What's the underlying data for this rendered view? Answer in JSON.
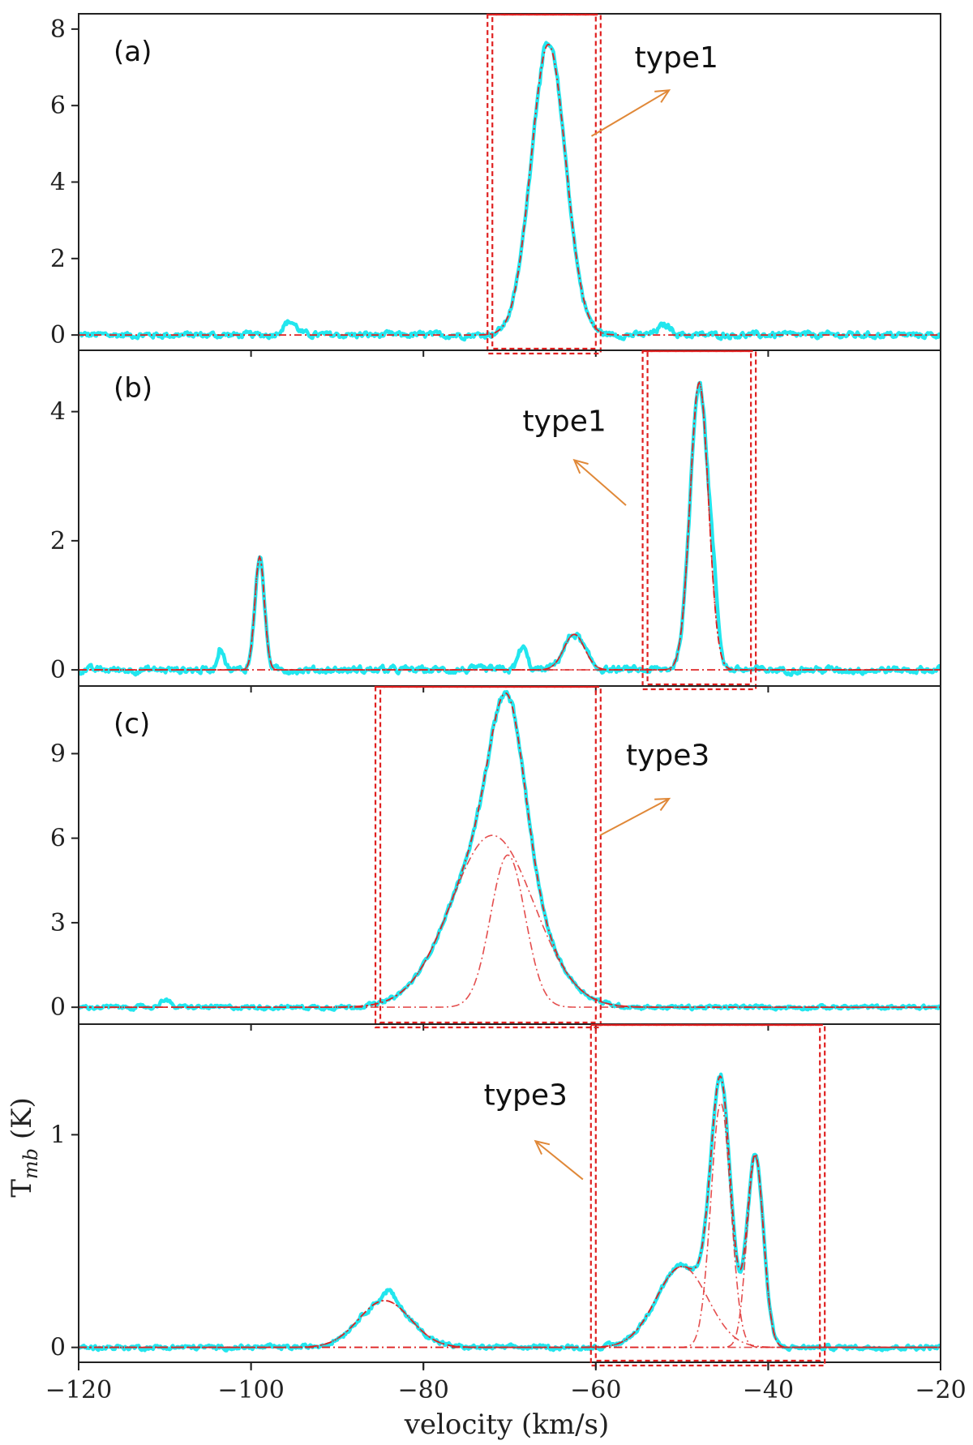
{
  "chart_data": [
    {
      "type": "line",
      "panel_label": "(a)",
      "xlim": [
        -120,
        -20
      ],
      "ylim": [
        -0.4,
        8.4
      ],
      "yticks": [
        0,
        2,
        4,
        6,
        8
      ],
      "grid": false,
      "line_color": "#22e6ee",
      "fit_color": "#dd2222",
      "components": [
        {
          "amp": 7.6,
          "center": -65.5,
          "sigma": 2.0
        }
      ],
      "noise": 0.09,
      "bumps": [
        {
          "amp": 0.35,
          "center": -95.5,
          "sigma": 0.8
        },
        {
          "amp": 0.25,
          "center": -52.0,
          "sigma": 0.8
        }
      ],
      "box": {
        "x0": -72,
        "x1": -60
      },
      "annotation": {
        "text": "type1",
        "arrow_from": [
          -60.5,
          5.2
        ],
        "arrow_to": [
          -51.5,
          6.4
        ],
        "text_at": [
          -55.5,
          7.0
        ]
      }
    },
    {
      "type": "line",
      "panel_label": "(b)",
      "xlim": [
        -120,
        -20
      ],
      "ylim": [
        -0.25,
        4.95
      ],
      "yticks": [
        0,
        2,
        4
      ],
      "grid": false,
      "line_color": "#22e6ee",
      "fit_color": "#dd2222",
      "components": [
        {
          "amp": 1.75,
          "center": -99.0,
          "sigma": 0.55
        },
        {
          "amp": 0.55,
          "center": -62.5,
          "sigma": 1.2
        },
        {
          "amp": 4.45,
          "center": -48.0,
          "sigma": 1.05
        }
      ],
      "noise": 0.06,
      "bumps": [
        {
          "amp": 0.35,
          "center": -103.5,
          "sigma": 0.4
        },
        {
          "amp": 0.35,
          "center": -68.5,
          "sigma": 0.5
        },
        {
          "amp": 0.55,
          "center": -46.3,
          "sigma": 0.5
        }
      ],
      "box": {
        "x0": -54,
        "x1": -42
      },
      "annotation": {
        "text": "type1",
        "arrow_from": [
          -56.5,
          2.55
        ],
        "arrow_to": [
          -62.5,
          3.25
        ],
        "text_at": [
          -68.5,
          3.7
        ]
      }
    },
    {
      "type": "line",
      "panel_label": "(c)",
      "xlim": [
        -120,
        -20
      ],
      "ylim": [
        -0.6,
        11.4
      ],
      "yticks": [
        0,
        3,
        6,
        9
      ],
      "grid": false,
      "line_color": "#22e6ee",
      "fit_color": "#dd2222",
      "components": [
        {
          "amp": 6.1,
          "center": -72.0,
          "sigma": 4.8
        },
        {
          "amp": 5.4,
          "center": -70.2,
          "sigma": 2.0
        }
      ],
      "noise": 0.08,
      "bumps": [
        {
          "amp": 0.3,
          "center": -110.0,
          "sigma": 0.5
        }
      ],
      "box": {
        "x0": -85,
        "x1": -60
      },
      "annotation": {
        "text": "type3",
        "arrow_from": [
          -59.5,
          6.1
        ],
        "arrow_to": [
          -51.5,
          7.4
        ],
        "text_at": [
          -56.5,
          8.6
        ]
      }
    },
    {
      "type": "line",
      "panel_label": "",
      "xlim": [
        -120,
        -20
      ],
      "ylim": [
        -0.07,
        1.52
      ],
      "yticks": [
        0,
        1
      ],
      "grid": false,
      "line_color": "#22e6ee",
      "fit_color": "#dd2222",
      "components": [
        {
          "amp": 0.22,
          "center": -84.5,
          "sigma": 3.0
        },
        {
          "amp": 0.38,
          "center": -50.0,
          "sigma": 3.0
        },
        {
          "amp": 1.15,
          "center": -45.5,
          "sigma": 1.15
        },
        {
          "amp": 0.9,
          "center": -41.5,
          "sigma": 0.95
        }
      ],
      "noise": 0.012,
      "bumps": [
        {
          "amp": 0.05,
          "center": -84.0,
          "sigma": 0.6
        }
      ],
      "box": {
        "x0": -60,
        "x1": -34
      },
      "annotation": {
        "text": "type3",
        "arrow_from": [
          -61.5,
          0.79
        ],
        "arrow_to": [
          -67.0,
          0.97
        ],
        "text_at": [
          -73.0,
          1.14
        ]
      }
    }
  ],
  "x_axis": {
    "label": "velocity (km/s)",
    "ticks": [
      -120,
      -100,
      -80,
      -60,
      -40,
      -20
    ]
  },
  "y_axis": {
    "label_main": "T",
    "label_sub": "mb",
    "label_unit": " (K)"
  },
  "colors": {
    "observed": "#22e6ee",
    "fit": "#dd2222",
    "box": "#e02020",
    "arrow": "#e08838",
    "axes": "#222222"
  }
}
